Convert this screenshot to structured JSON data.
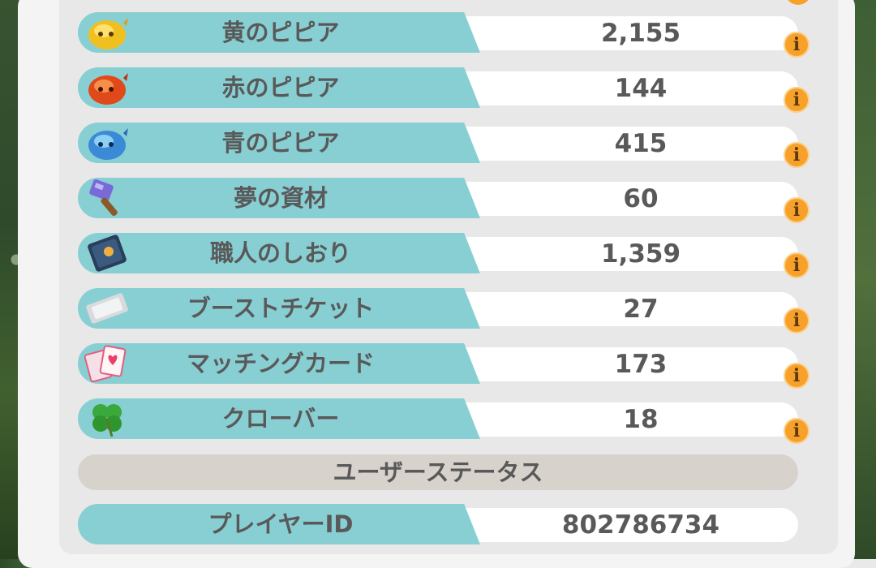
{
  "items": [
    {
      "label": "黄のピピア",
      "value": "2,155",
      "icon": "yellow-pipia-icon"
    },
    {
      "label": "赤のピピア",
      "value": "144",
      "icon": "red-pipia-icon"
    },
    {
      "label": "青のピピア",
      "value": "415",
      "icon": "blue-pipia-icon"
    },
    {
      "label": "夢の資材",
      "value": "60",
      "icon": "hammer-icon"
    },
    {
      "label": "職人のしおり",
      "value": "1,359",
      "icon": "book-icon"
    },
    {
      "label": "ブーストチケット",
      "value": "27",
      "icon": "ticket-icon"
    },
    {
      "label": "マッチングカード",
      "value": "173",
      "icon": "cards-icon"
    },
    {
      "label": "クローバー",
      "value": "18",
      "icon": "clover-icon"
    }
  ],
  "info_glyph": "i",
  "section_title": "ユーザーステータス",
  "player": {
    "label": "プレイヤーID",
    "value": "802786734"
  }
}
